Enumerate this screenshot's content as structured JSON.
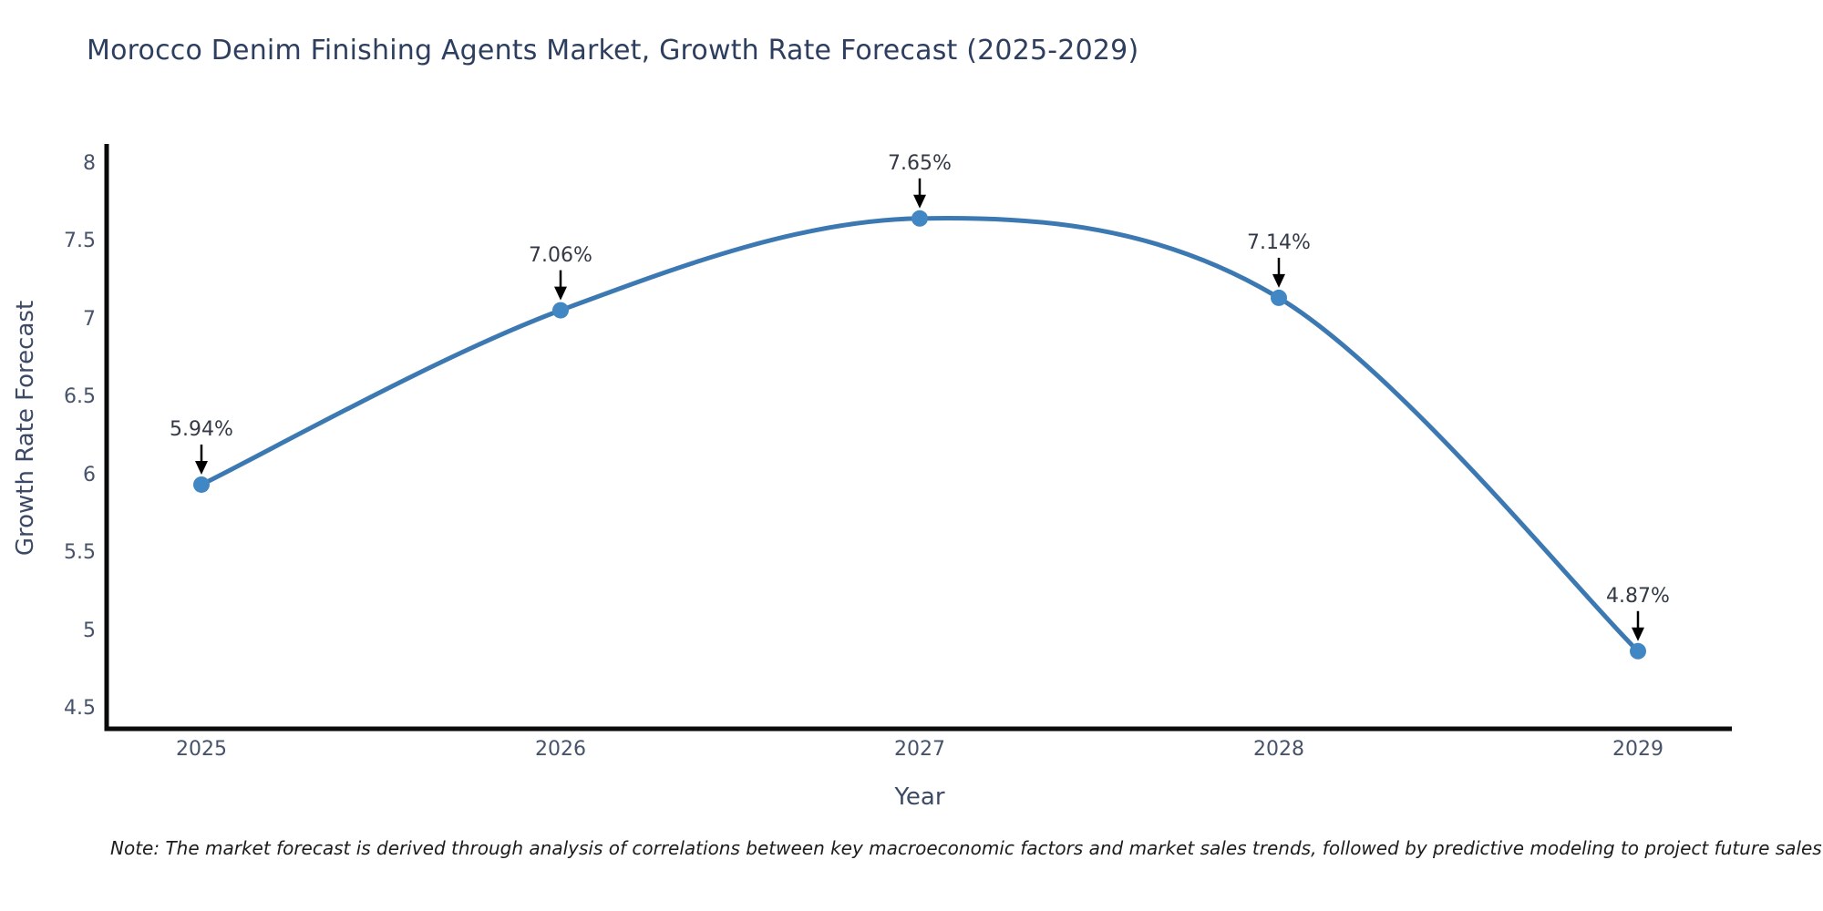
{
  "title": "Morocco Denim Finishing Agents Market, Growth Rate Forecast (2025-2029)",
  "note": "Note: The market forecast is derived through analysis of correlations between key macroeconomic factors and market sales trends, followed by predictive modeling to project future sales",
  "chart_data": {
    "type": "line",
    "title": "Morocco Denim Finishing Agents Market, Growth Rate Forecast (2025-2029)",
    "categories": [
      "2025",
      "2026",
      "2027",
      "2028",
      "2029"
    ],
    "values": [
      5.94,
      7.06,
      7.65,
      7.14,
      4.87
    ],
    "point_labels": [
      "5.94%",
      "7.06%",
      "7.65%",
      "7.14%",
      "4.87%"
    ],
    "series": [
      {
        "name": "Growth Rate Forecast",
        "values": [
          5.94,
          7.06,
          7.65,
          7.14,
          4.87
        ]
      }
    ],
    "xlabel": "Year",
    "ylabel": "Growth Rate Forecast",
    "yticks": [
      8,
      7.5,
      7,
      6.5,
      6,
      5.5,
      5,
      4.5
    ],
    "ylim": [
      4.37,
      8.13
    ],
    "grid": false,
    "legend_position": "none",
    "line_shape": "spline",
    "marker": "circle",
    "annotation_style": "value label with downward black arrow at each point",
    "colors": {
      "line": "#3c79b2",
      "marker": "#4187c4",
      "annotation_arrow": "#000000",
      "axis": "#0a0a0a",
      "title_text": "#2d3e5f",
      "axis_title_text": "#3d4a66",
      "tick_text": "#47536b",
      "background": "#ffffff"
    }
  }
}
